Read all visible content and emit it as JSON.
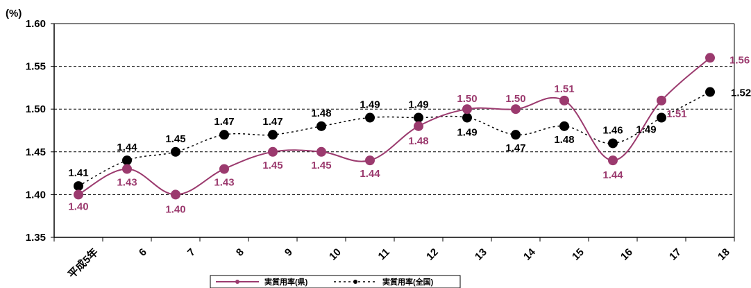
{
  "chart_data": {
    "type": "line",
    "unit_label": "(%)",
    "categories": [
      "平成5年",
      "6",
      "7",
      "8",
      "9",
      "10",
      "11",
      "12",
      "13",
      "14",
      "15",
      "16",
      "17",
      "18"
    ],
    "yticks": [
      "1.35",
      "1.40",
      "1.45",
      "1.50",
      "1.55",
      "1.60"
    ],
    "ylim": [
      1.35,
      1.6
    ],
    "grid": "dashed horizontal at 1.40, 1.45, 1.50, 1.55",
    "legend_position": "bottom",
    "series": [
      {
        "name": "実質用率(県)",
        "color": "#9B3A6E",
        "style": "solid",
        "values": [
          1.4,
          1.43,
          1.4,
          1.43,
          1.45,
          1.45,
          1.44,
          1.48,
          1.5,
          1.5,
          1.51,
          1.44,
          1.51,
          1.56
        ],
        "labels": [
          "1.40",
          "1.43",
          "1.40",
          "1.43",
          "1.45",
          "1.45",
          "1.44",
          "1.48",
          "1.50",
          "1.50",
          "1.51",
          "1.44",
          "1.51",
          "1.56"
        ]
      },
      {
        "name": "実質用率(全国)",
        "color": "#000000",
        "style": "dotted",
        "values": [
          1.41,
          1.44,
          1.45,
          1.47,
          1.47,
          1.48,
          1.49,
          1.49,
          1.49,
          1.47,
          1.48,
          1.46,
          1.49,
          1.52
        ],
        "labels": [
          "1.41",
          "1.44",
          "1.45",
          "1.47",
          "1.47",
          "1.48",
          "1.49",
          "1.49",
          "1.49",
          "1.47",
          "1.48",
          "1.46",
          "1.49",
          "1.52"
        ]
      }
    ]
  }
}
